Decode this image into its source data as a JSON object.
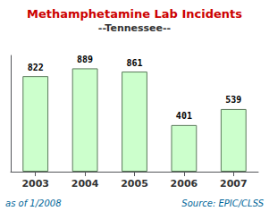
{
  "chart_data": {
    "type": "bar",
    "title": "Methamphetamine Lab Incidents",
    "subtitle": "--Tennessee--",
    "categories": [
      "2003",
      "2004",
      "2005",
      "2006",
      "2007"
    ],
    "values": [
      822,
      889,
      861,
      401,
      539
    ],
    "color": "#ccffcc",
    "ylim": [
      0,
      1000
    ],
    "data_labels": true,
    "tick_labels": "x",
    "grid": false,
    "annotations": [
      "as of 1/2008",
      "Source: EPIC/CLSS"
    ]
  }
}
